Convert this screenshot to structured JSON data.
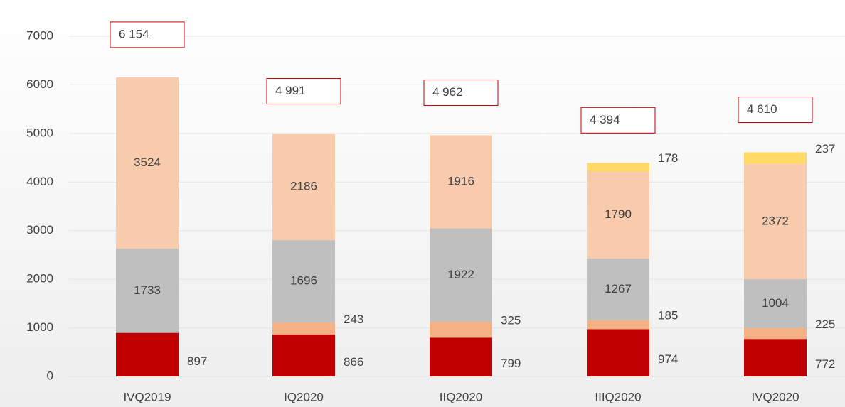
{
  "chart_data": {
    "type": "stacked_bar",
    "categories": [
      "IVQ2019",
      "IQ2020",
      "IIQ2020",
      "IIIQ2020",
      "IVQ2020"
    ],
    "series": [
      {
        "color": "#c00000",
        "values": [
          897,
          866,
          799,
          974,
          772
        ]
      },
      {
        "color": "#f4b183",
        "values": [
          null,
          243,
          325,
          185,
          225
        ]
      },
      {
        "color": "#bfbfbf",
        "values": [
          1733,
          1696,
          1922,
          1267,
          1004
        ]
      },
      {
        "color": "#f8cbad",
        "values": [
          3524,
          2186,
          1916,
          1790,
          2372
        ]
      },
      {
        "color": "#ffd966",
        "values": [
          null,
          null,
          null,
          178,
          237
        ]
      }
    ],
    "totals": [
      6154,
      4991,
      4962,
      4394,
      4610
    ],
    "total_labels": [
      "6 154",
      "4 991",
      "4 962",
      "4 394",
      "4 610"
    ],
    "ylim": [
      0,
      7000
    ],
    "yticks": [
      0,
      1000,
      2000,
      3000,
      4000,
      5000,
      6000,
      7000
    ],
    "grid": true
  }
}
